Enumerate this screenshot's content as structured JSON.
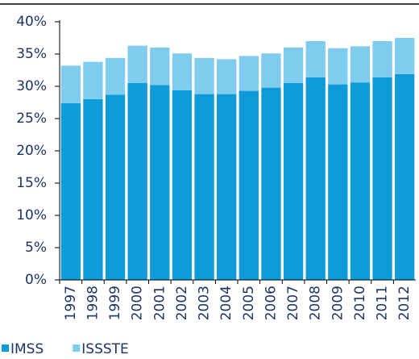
{
  "chart_data": {
    "type": "stacked_bar",
    "categories": [
      "1997",
      "1998",
      "1999",
      "2000",
      "2001",
      "2002",
      "2003",
      "2004",
      "2005",
      "2006",
      "2007",
      "2008",
      "2009",
      "2010",
      "2011",
      "2012"
    ],
    "series": [
      {
        "name": "IMSS",
        "color": "#0e9bd8",
        "values": [
          27.4,
          28.0,
          28.7,
          30.5,
          30.2,
          29.4,
          28.8,
          28.8,
          29.3,
          29.8,
          30.5,
          31.4,
          30.3,
          30.6,
          31.4,
          31.9
        ]
      },
      {
        "name": "ISSSTE",
        "color": "#7fccef",
        "values": [
          5.8,
          5.8,
          5.7,
          5.8,
          5.8,
          5.7,
          5.6,
          5.4,
          5.4,
          5.3,
          5.5,
          5.6,
          5.6,
          5.6,
          5.6,
          5.6
        ]
      }
    ],
    "ylim": [
      0,
      40
    ],
    "yticks": [
      {
        "value": 0,
        "label": "0%"
      },
      {
        "value": 5,
        "label": "5%"
      },
      {
        "value": 10,
        "label": "10%"
      },
      {
        "value": 15,
        "label": "15%"
      },
      {
        "value": 20,
        "label": "20%"
      },
      {
        "value": 25,
        "label": "25%"
      },
      {
        "value": 30,
        "label": "30%"
      },
      {
        "value": 35,
        "label": "35%"
      },
      {
        "value": 40,
        "label": "40%"
      }
    ],
    "legend": "bottom-left"
  }
}
